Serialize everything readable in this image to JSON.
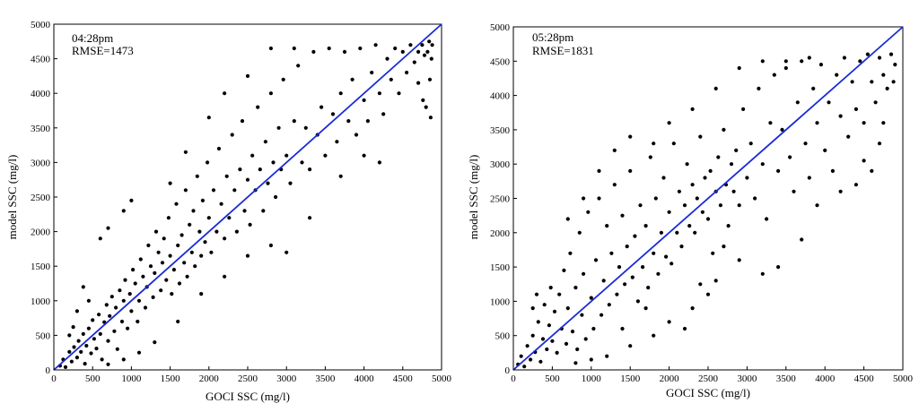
{
  "chart_data": [
    {
      "type": "scatter",
      "annotations": [
        "04:28pm",
        "RMSE=1473"
      ],
      "xlabel": "GOCI SSC (mg/l)",
      "ylabel": "model SSC (mg/l)",
      "xlim": [
        0,
        5000
      ],
      "ylim": [
        0,
        5000
      ],
      "xticks": [
        "0",
        "500",
        "1000",
        "1500",
        "2000",
        "2500",
        "3000",
        "3500",
        "4000",
        "4500",
        "5000"
      ],
      "yticks": [
        "0",
        "500",
        "1000",
        "1500",
        "2000",
        "2500",
        "3000",
        "3500",
        "4000",
        "4500",
        "5000"
      ],
      "grid": false,
      "marker_color": "#000000",
      "reference_line": {
        "x": [
          0,
          5000
        ],
        "y": [
          0,
          5000
        ],
        "color": "#1a2bd6"
      },
      "points": [
        [
          80,
          60
        ],
        [
          120,
          150
        ],
        [
          150,
          40
        ],
        [
          200,
          260
        ],
        [
          230,
          120
        ],
        [
          260,
          330
        ],
        [
          300,
          180
        ],
        [
          320,
          420
        ],
        [
          350,
          260
        ],
        [
          380,
          520
        ],
        [
          400,
          90
        ],
        [
          420,
          350
        ],
        [
          450,
          600
        ],
        [
          480,
          240
        ],
        [
          500,
          720
        ],
        [
          520,
          450
        ],
        [
          550,
          310
        ],
        [
          580,
          800
        ],
        [
          600,
          520
        ],
        [
          620,
          150
        ],
        [
          650,
          690
        ],
        [
          680,
          940
        ],
        [
          700,
          420
        ],
        [
          720,
          780
        ],
        [
          750,
          1060
        ],
        [
          780,
          560
        ],
        [
          800,
          900
        ],
        [
          820,
          300
        ],
        [
          850,
          1150
        ],
        [
          880,
          700
        ],
        [
          900,
          1000
        ],
        [
          920,
          1300
        ],
        [
          950,
          600
        ],
        [
          980,
          1100
        ],
        [
          1000,
          850
        ],
        [
          1020,
          1450
        ],
        [
          1050,
          1250
        ],
        [
          1080,
          700
        ],
        [
          1100,
          1000
        ],
        [
          1120,
          1600
        ],
        [
          1150,
          1350
        ],
        [
          1180,
          900
        ],
        [
          1200,
          1200
        ],
        [
          1220,
          1800
        ],
        [
          1250,
          1500
        ],
        [
          1280,
          1050
        ],
        [
          1300,
          1400
        ],
        [
          1320,
          2000
        ],
        [
          1350,
          1700
        ],
        [
          1380,
          1150
        ],
        [
          1400,
          1550
        ],
        [
          1420,
          1900
        ],
        [
          1450,
          1300
        ],
        [
          1480,
          2200
        ],
        [
          1500,
          1650
        ],
        [
          1520,
          1100
        ],
        [
          1550,
          1450
        ],
        [
          1580,
          2400
        ],
        [
          1600,
          1800
        ],
        [
          1620,
          1250
        ],
        [
          1650,
          1950
        ],
        [
          1680,
          1550
        ],
        [
          1700,
          2600
        ],
        [
          1720,
          1350
        ],
        [
          1750,
          2100
        ],
        [
          1780,
          1700
        ],
        [
          1800,
          2300
        ],
        [
          1820,
          1500
        ],
        [
          1850,
          2800
        ],
        [
          1880,
          2000
        ],
        [
          1900,
          1650
        ],
        [
          1920,
          2450
        ],
        [
          1950,
          1850
        ],
        [
          1980,
          3000
        ],
        [
          2000,
          2200
        ],
        [
          2030,
          1700
        ],
        [
          2060,
          2600
        ],
        [
          2100,
          2000
        ],
        [
          2130,
          3200
        ],
        [
          2160,
          2400
        ],
        [
          2200,
          1900
        ],
        [
          2230,
          2800
        ],
        [
          2260,
          2200
        ],
        [
          2300,
          3400
        ],
        [
          2330,
          2600
        ],
        [
          2360,
          2000
        ],
        [
          2400,
          2900
        ],
        [
          2430,
          3600
        ],
        [
          2460,
          2300
        ],
        [
          2500,
          2750
        ],
        [
          2530,
          2100
        ],
        [
          2560,
          3100
        ],
        [
          2600,
          2600
        ],
        [
          2630,
          3800
        ],
        [
          2660,
          2900
        ],
        [
          2700,
          2300
        ],
        [
          2730,
          3300
        ],
        [
          2760,
          2700
        ],
        [
          2800,
          4000
        ],
        [
          2830,
          3000
        ],
        [
          2860,
          2500
        ],
        [
          2900,
          3500
        ],
        [
          2930,
          2900
        ],
        [
          2960,
          4200
        ],
        [
          3000,
          3100
        ],
        [
          3050,
          2700
        ],
        [
          3100,
          3600
        ],
        [
          3150,
          4400
        ],
        [
          3200,
          3000
        ],
        [
          3250,
          3500
        ],
        [
          3300,
          2900
        ],
        [
          3350,
          4600
        ],
        [
          3400,
          3400
        ],
        [
          3450,
          3800
        ],
        [
          3500,
          3100
        ],
        [
          3550,
          4650
        ],
        [
          3600,
          3700
        ],
        [
          3650,
          3300
        ],
        [
          3700,
          4000
        ],
        [
          3750,
          4600
        ],
        [
          3800,
          3600
        ],
        [
          3850,
          4200
        ],
        [
          3900,
          3400
        ],
        [
          3950,
          4650
        ],
        [
          4000,
          3900
        ],
        [
          4050,
          3600
        ],
        [
          4100,
          4300
        ],
        [
          4150,
          4700
        ],
        [
          4200,
          4000
        ],
        [
          4250,
          3700
        ],
        [
          4300,
          4500
        ],
        [
          4350,
          4200
        ],
        [
          4400,
          4650
        ],
        [
          4450,
          4000
        ],
        [
          4500,
          4600
        ],
        [
          4550,
          4300
        ],
        [
          4600,
          4700
        ],
        [
          4650,
          4450
        ],
        [
          4700,
          4150
        ],
        [
          4750,
          4700
        ],
        [
          4780,
          4550
        ],
        [
          4800,
          3800
        ],
        [
          4820,
          4600
        ],
        [
          4840,
          4750
        ],
        [
          4850,
          4200
        ],
        [
          4860,
          3650
        ],
        [
          4870,
          4500
        ],
        [
          4880,
          4700
        ],
        [
          4760,
          3900
        ],
        [
          4700,
          4600
        ],
        [
          600,
          1900
        ],
        [
          700,
          2050
        ],
        [
          900,
          2300
        ],
        [
          1000,
          2450
        ],
        [
          450,
          1000
        ],
        [
          380,
          1200
        ],
        [
          300,
          850
        ],
        [
          250,
          620
        ],
        [
          200,
          500
        ],
        [
          1500,
          2700
        ],
        [
          1700,
          3150
        ],
        [
          2000,
          3650
        ],
        [
          2200,
          4000
        ],
        [
          2500,
          4250
        ],
        [
          2800,
          4650
        ],
        [
          3100,
          4650
        ],
        [
          1300,
          400
        ],
        [
          1600,
          700
        ],
        [
          1900,
          1100
        ],
        [
          2200,
          1350
        ],
        [
          2500,
          1650
        ],
        [
          2800,
          1800
        ],
        [
          3000,
          1700
        ],
        [
          3300,
          2200
        ],
        [
          3700,
          2800
        ],
        [
          4000,
          3100
        ],
        [
          4200,
          3000
        ],
        [
          1100,
          250
        ],
        [
          900,
          150
        ],
        [
          700,
          80
        ]
      ]
    },
    {
      "type": "scatter",
      "annotations": [
        "05:28pm",
        "RMSE=1831"
      ],
      "xlabel": "GOCI SSC (mg/l)",
      "ylabel": "model SSC (mg/l)",
      "xlim": [
        0,
        5000
      ],
      "ylim": [
        0,
        5000
      ],
      "xticks": [
        "0",
        "500",
        "1000",
        "1500",
        "2000",
        "2500",
        "3000",
        "3500",
        "4000",
        "4500",
        "5000"
      ],
      "yticks": [
        "0",
        "500",
        "1000",
        "1500",
        "2000",
        "2500",
        "3000",
        "3500",
        "4000",
        "4500",
        "5000"
      ],
      "grid": false,
      "marker_color": "#000000",
      "reference_line": {
        "x": [
          0,
          5000
        ],
        "y": [
          0,
          5000
        ],
        "color": "#1a2bd6"
      },
      "points": [
        [
          60,
          80
        ],
        [
          100,
          200
        ],
        [
          140,
          50
        ],
        [
          180,
          350
        ],
        [
          220,
          150
        ],
        [
          250,
          500
        ],
        [
          280,
          260
        ],
        [
          320,
          700
        ],
        [
          350,
          120
        ],
        [
          380,
          450
        ],
        [
          400,
          950
        ],
        [
          430,
          300
        ],
        [
          460,
          650
        ],
        [
          480,
          1200
        ],
        [
          500,
          420
        ],
        [
          530,
          850
        ],
        [
          560,
          250
        ],
        [
          590,
          1100
        ],
        [
          620,
          600
        ],
        [
          650,
          1450
        ],
        [
          680,
          380
        ],
        [
          700,
          900
        ],
        [
          730,
          1700
        ],
        [
          760,
          560
        ],
        [
          800,
          1200
        ],
        [
          820,
          300
        ],
        [
          850,
          2000
        ],
        [
          880,
          800
        ],
        [
          900,
          1400
        ],
        [
          930,
          450
        ],
        [
          960,
          2300
        ],
        [
          1000,
          1050
        ],
        [
          1030,
          600
        ],
        [
          1060,
          1600
        ],
        [
          1100,
          2500
        ],
        [
          1130,
          800
        ],
        [
          1160,
          1300
        ],
        [
          1200,
          2100
        ],
        [
          1230,
          950
        ],
        [
          1260,
          1700
        ],
        [
          1300,
          2700
        ],
        [
          1330,
          1100
        ],
        [
          1360,
          1500
        ],
        [
          1400,
          2250
        ],
        [
          1430,
          1250
        ],
        [
          1460,
          1800
        ],
        [
          1500,
          2900
        ],
        [
          1530,
          1350
        ],
        [
          1560,
          1950
        ],
        [
          1600,
          1000
        ],
        [
          1630,
          2400
        ],
        [
          1660,
          1500
        ],
        [
          1700,
          2100
        ],
        [
          1730,
          1200
        ],
        [
          1760,
          3100
        ],
        [
          1800,
          1700
        ],
        [
          1830,
          2500
        ],
        [
          1860,
          1400
        ],
        [
          1900,
          2000
        ],
        [
          1930,
          2800
        ],
        [
          1960,
          1650
        ],
        [
          2000,
          2300
        ],
        [
          2030,
          1550
        ],
        [
          2060,
          3300
        ],
        [
          2100,
          2000
        ],
        [
          2130,
          2600
        ],
        [
          2160,
          1800
        ],
        [
          2200,
          2400
        ],
        [
          2230,
          3000
        ],
        [
          2260,
          2100
        ],
        [
          2300,
          2700
        ],
        [
          2330,
          2000
        ],
        [
          2360,
          2500
        ],
        [
          2400,
          3400
        ],
        [
          2430,
          2300
        ],
        [
          2460,
          2800
        ],
        [
          2500,
          2200
        ],
        [
          2530,
          2900
        ],
        [
          2560,
          1700
        ],
        [
          2600,
          2600
        ],
        [
          2630,
          3100
        ],
        [
          2660,
          2400
        ],
        [
          2700,
          3500
        ],
        [
          2730,
          2700
        ],
        [
          2760,
          2100
        ],
        [
          2800,
          3000
        ],
        [
          2830,
          2600
        ],
        [
          2860,
          3200
        ],
        [
          2900,
          2400
        ],
        [
          2950,
          3800
        ],
        [
          3000,
          2800
        ],
        [
          3050,
          3300
        ],
        [
          3100,
          2500
        ],
        [
          3150,
          4100
        ],
        [
          3200,
          3000
        ],
        [
          3250,
          2200
        ],
        [
          3300,
          3600
        ],
        [
          3350,
          4300
        ],
        [
          3400,
          2900
        ],
        [
          3450,
          3500
        ],
        [
          3500,
          4400
        ],
        [
          3550,
          3100
        ],
        [
          3600,
          2600
        ],
        [
          3650,
          3900
        ],
        [
          3700,
          4500
        ],
        [
          3750,
          3300
        ],
        [
          3800,
          2800
        ],
        [
          3850,
          4100
        ],
        [
          3900,
          3600
        ],
        [
          3950,
          4450
        ],
        [
          4000,
          3200
        ],
        [
          4050,
          3900
        ],
        [
          4100,
          2900
        ],
        [
          4150,
          4300
        ],
        [
          4200,
          3700
        ],
        [
          4250,
          4550
        ],
        [
          4300,
          3400
        ],
        [
          4350,
          4200
        ],
        [
          4400,
          3800
        ],
        [
          4450,
          4500
        ],
        [
          4500,
          3600
        ],
        [
          4550,
          4600
        ],
        [
          4600,
          4200
        ],
        [
          4650,
          3900
        ],
        [
          4700,
          4550
        ],
        [
          4750,
          4300
        ],
        [
          4800,
          4100
        ],
        [
          4850,
          4600
        ],
        [
          4900,
          4450
        ],
        [
          4880,
          4200
        ],
        [
          4500,
          3050
        ],
        [
          4600,
          2900
        ],
        [
          4700,
          3300
        ],
        [
          4750,
          3600
        ],
        [
          4400,
          2700
        ],
        [
          4200,
          2600
        ],
        [
          3900,
          2400
        ],
        [
          3700,
          1900
        ],
        [
          3400,
          1500
        ],
        [
          3200,
          1400
        ],
        [
          2900,
          1600
        ],
        [
          2600,
          1300
        ],
        [
          2300,
          900
        ],
        [
          2000,
          700
        ],
        [
          1800,
          500
        ],
        [
          1500,
          350
        ],
        [
          1200,
          200
        ],
        [
          1000,
          150
        ],
        [
          800,
          100
        ],
        [
          2200,
          600
        ],
        [
          1300,
          3200
        ],
        [
          1500,
          3400
        ],
        [
          1100,
          2900
        ],
        [
          900,
          2500
        ],
        [
          700,
          2200
        ],
        [
          1800,
          3300
        ],
        [
          2000,
          3600
        ],
        [
          2300,
          3800
        ],
        [
          2600,
          4100
        ],
        [
          2900,
          4400
        ],
        [
          3200,
          4500
        ],
        [
          3500,
          4500
        ],
        [
          3800,
          4550
        ],
        [
          2400,
          1250
        ],
        [
          2700,
          1800
        ],
        [
          2500,
          1100
        ],
        [
          1700,
          900
        ],
        [
          1400,
          600
        ],
        [
          300,
          1100
        ],
        [
          250,
          900
        ]
      ]
    }
  ]
}
